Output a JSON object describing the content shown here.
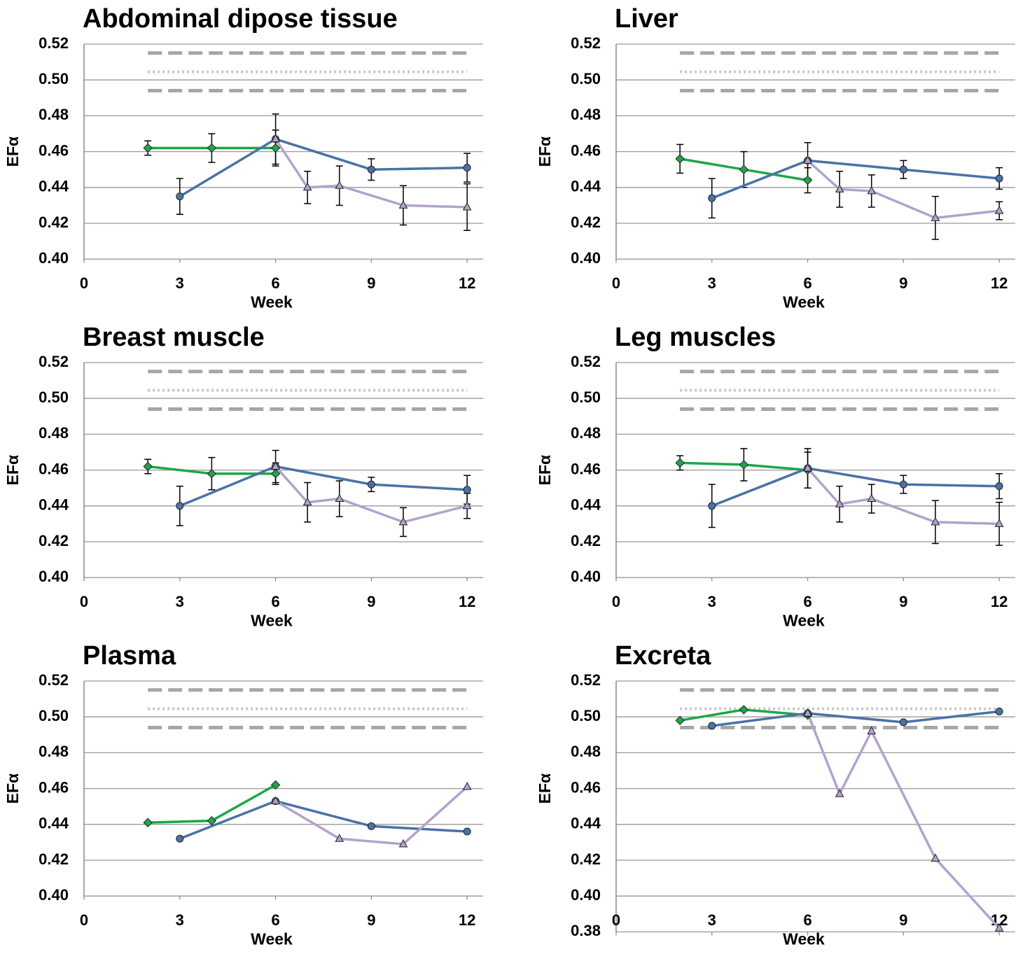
{
  "chart_data": [
    {
      "type": "line",
      "title": "Abdominal dipose tissue",
      "xlabel": "Week",
      "ylabel": "EFα",
      "xlim": [
        0,
        12.5
      ],
      "xticks": [
        0,
        3,
        6,
        9,
        12
      ],
      "ylim": [
        0.4,
        0.52
      ],
      "yticks": [
        {
          "value": 0.4,
          "label": "0.40"
        },
        {
          "value": 0.42,
          "label": "0.42"
        },
        {
          "value": 0.44,
          "label": "0.44"
        },
        {
          "value": 0.46,
          "label": "0.46"
        },
        {
          "value": 0.48,
          "label": "0.48"
        },
        {
          "value": 0.5,
          "label": "0.50"
        },
        {
          "value": 0.52,
          "label": "0.52"
        }
      ],
      "grid": true,
      "reference_x": [
        2,
        12
      ],
      "reference_lines": [
        {
          "y": 0.515,
          "style": "dashed"
        },
        {
          "y": 0.5045,
          "style": "dotted"
        },
        {
          "y": 0.494,
          "style": "dashed"
        }
      ],
      "series": [
        {
          "color": "#1fa648",
          "marker": "diamond",
          "x": [
            2,
            4,
            6
          ],
          "values": [
            0.462,
            0.462,
            0.462
          ],
          "errors": [
            0.004,
            0.008,
            0.01
          ]
        },
        {
          "color": "#4a72a8",
          "marker": "circle",
          "x": [
            3,
            6,
            9,
            12
          ],
          "values": [
            0.435,
            0.467,
            0.45,
            0.451
          ],
          "errors": [
            0.01,
            0.014,
            0.006,
            0.008
          ]
        },
        {
          "color": "#b3a2cc",
          "marker": "triangle",
          "x": [
            6,
            7,
            8,
            10,
            12
          ],
          "values": [
            0.467,
            0.44,
            0.441,
            0.43,
            0.429
          ],
          "errors": [
            null,
            0.009,
            0.011,
            0.011,
            0.013
          ]
        }
      ]
    },
    {
      "type": "line",
      "title": "Liver",
      "xlabel": "Week",
      "ylabel": "EFα",
      "xlim": [
        0,
        12.5
      ],
      "xticks": [
        0,
        3,
        6,
        9,
        12
      ],
      "ylim": [
        0.4,
        0.52
      ],
      "yticks": [
        {
          "value": 0.4,
          "label": "0.40"
        },
        {
          "value": 0.42,
          "label": "0.42"
        },
        {
          "value": 0.44,
          "label": "0.44"
        },
        {
          "value": 0.46,
          "label": "0.46"
        },
        {
          "value": 0.48,
          "label": "0.48"
        },
        {
          "value": 0.5,
          "label": "0.50"
        },
        {
          "value": 0.52,
          "label": "0.52"
        }
      ],
      "grid": true,
      "reference_x": [
        2,
        12
      ],
      "reference_lines": [
        {
          "y": 0.515,
          "style": "dashed"
        },
        {
          "y": 0.5045,
          "style": "dotted"
        },
        {
          "y": 0.494,
          "style": "dashed"
        }
      ],
      "series": [
        {
          "color": "#1fa648",
          "marker": "diamond",
          "x": [
            2,
            4,
            6
          ],
          "values": [
            0.456,
            0.45,
            0.444
          ],
          "errors": [
            0.008,
            0.01,
            0.007
          ]
        },
        {
          "color": "#4a72a8",
          "marker": "circle",
          "x": [
            3,
            6,
            9,
            12
          ],
          "values": [
            0.434,
            0.455,
            0.45,
            0.445
          ],
          "errors": [
            0.011,
            0.01,
            0.005,
            0.006
          ]
        },
        {
          "color": "#b3a2cc",
          "marker": "triangle",
          "x": [
            6,
            7,
            8,
            10,
            12
          ],
          "values": [
            0.455,
            0.439,
            0.438,
            0.423,
            0.427
          ],
          "errors": [
            null,
            0.01,
            0.009,
            0.012,
            0.005
          ]
        }
      ]
    },
    {
      "type": "line",
      "title": "Breast muscle",
      "xlabel": "Week",
      "ylabel": "EFα",
      "xlim": [
        0,
        12.5
      ],
      "xticks": [
        0,
        3,
        6,
        9,
        12
      ],
      "ylim": [
        0.4,
        0.52
      ],
      "yticks": [
        {
          "value": 0.4,
          "label": "0.40"
        },
        {
          "value": 0.42,
          "label": "0.42"
        },
        {
          "value": 0.44,
          "label": "0.44"
        },
        {
          "value": 0.46,
          "label": "0.46"
        },
        {
          "value": 0.48,
          "label": "0.48"
        },
        {
          "value": 0.5,
          "label": "0.50"
        },
        {
          "value": 0.52,
          "label": "0.52"
        }
      ],
      "grid": true,
      "reference_x": [
        2,
        12
      ],
      "reference_lines": [
        {
          "y": 0.515,
          "style": "dashed"
        },
        {
          "y": 0.5045,
          "style": "dotted"
        },
        {
          "y": 0.494,
          "style": "dashed"
        }
      ],
      "series": [
        {
          "color": "#1fa648",
          "marker": "diamond",
          "x": [
            2,
            4,
            6
          ],
          "values": [
            0.462,
            0.458,
            0.458
          ],
          "errors": [
            0.004,
            0.009,
            0.006
          ]
        },
        {
          "color": "#4a72a8",
          "marker": "circle",
          "x": [
            3,
            6,
            9,
            12
          ],
          "values": [
            0.44,
            0.462,
            0.452,
            0.449
          ],
          "errors": [
            0.011,
            0.009,
            0.004,
            0.008
          ]
        },
        {
          "color": "#b3a2cc",
          "marker": "triangle",
          "x": [
            6,
            7,
            8,
            10,
            12
          ],
          "values": [
            0.462,
            0.442,
            0.444,
            0.431,
            0.44
          ],
          "errors": [
            null,
            0.011,
            0.01,
            0.008,
            0.007
          ]
        }
      ]
    },
    {
      "type": "line",
      "title": "Leg muscles",
      "xlabel": "Week",
      "ylabel": "EFα",
      "xlim": [
        0,
        12.5
      ],
      "xticks": [
        0,
        3,
        6,
        9,
        12
      ],
      "ylim": [
        0.4,
        0.52
      ],
      "yticks": [
        {
          "value": 0.4,
          "label": "0.40"
        },
        {
          "value": 0.42,
          "label": "0.42"
        },
        {
          "value": 0.44,
          "label": "0.44"
        },
        {
          "value": 0.46,
          "label": "0.46"
        },
        {
          "value": 0.48,
          "label": "0.48"
        },
        {
          "value": 0.5,
          "label": "0.50"
        },
        {
          "value": 0.52,
          "label": "0.52"
        }
      ],
      "grid": true,
      "reference_x": [
        2,
        12
      ],
      "reference_lines": [
        {
          "y": 0.515,
          "style": "dashed"
        },
        {
          "y": 0.5045,
          "style": "dotted"
        },
        {
          "y": 0.494,
          "style": "dashed"
        }
      ],
      "series": [
        {
          "color": "#1fa648",
          "marker": "diamond",
          "x": [
            2,
            4,
            6
          ],
          "values": [
            0.464,
            0.463,
            0.46
          ],
          "errors": [
            0.004,
            0.009,
            0.01
          ]
        },
        {
          "color": "#4a72a8",
          "marker": "circle",
          "x": [
            3,
            6,
            9,
            12
          ],
          "values": [
            0.44,
            0.461,
            0.452,
            0.451
          ],
          "errors": [
            0.012,
            0.011,
            0.005,
            0.007
          ]
        },
        {
          "color": "#b3a2cc",
          "marker": "triangle",
          "x": [
            6,
            7,
            8,
            10,
            12
          ],
          "values": [
            0.461,
            0.441,
            0.444,
            0.431,
            0.43
          ],
          "errors": [
            null,
            0.01,
            0.008,
            0.012,
            0.012
          ]
        }
      ]
    },
    {
      "type": "line",
      "title": "Plasma",
      "xlabel": "Week",
      "ylabel": "EFα",
      "xlim": [
        0,
        12.5
      ],
      "xticks": [
        0,
        3,
        6,
        9,
        12
      ],
      "ylim": [
        0.4,
        0.52
      ],
      "yticks": [
        {
          "value": 0.4,
          "label": "0.40"
        },
        {
          "value": 0.42,
          "label": "0.42"
        },
        {
          "value": 0.44,
          "label": "0.44"
        },
        {
          "value": 0.46,
          "label": "0.46"
        },
        {
          "value": 0.48,
          "label": "0.48"
        },
        {
          "value": 0.5,
          "label": "0.50"
        },
        {
          "value": 0.52,
          "label": "0.52"
        }
      ],
      "grid": true,
      "reference_x": [
        2,
        12
      ],
      "reference_lines": [
        {
          "y": 0.515,
          "style": "dashed"
        },
        {
          "y": 0.5045,
          "style": "dotted"
        },
        {
          "y": 0.494,
          "style": "dashed"
        }
      ],
      "series": [
        {
          "color": "#1fa648",
          "marker": "diamond",
          "x": [
            2,
            4,
            6
          ],
          "values": [
            0.441,
            0.442,
            0.462
          ]
        },
        {
          "color": "#4a72a8",
          "marker": "circle",
          "x": [
            3,
            6,
            9,
            12
          ],
          "values": [
            0.432,
            0.453,
            0.439,
            0.436
          ]
        },
        {
          "color": "#b3a2cc",
          "marker": "triangle",
          "x": [
            6,
            8,
            10,
            12
          ],
          "values": [
            0.453,
            0.432,
            0.429,
            0.461
          ]
        }
      ]
    },
    {
      "type": "line",
      "title": "Excreta",
      "xlabel": "Week",
      "ylabel": "EFα",
      "xlim": [
        0,
        12.5
      ],
      "xticks": [
        0,
        3,
        6,
        9,
        12
      ],
      "ylim": [
        0.38,
        0.52
      ],
      "yticks": [
        {
          "value": 0.38,
          "label": "0.38"
        },
        {
          "value": 0.4,
          "label": "0.40"
        },
        {
          "value": 0.42,
          "label": "0.42"
        },
        {
          "value": 0.44,
          "label": "0.44"
        },
        {
          "value": 0.46,
          "label": "0.46"
        },
        {
          "value": 0.48,
          "label": "0.48"
        },
        {
          "value": 0.5,
          "label": "0.50"
        },
        {
          "value": 0.52,
          "label": "0.52"
        }
      ],
      "grid": true,
      "reference_x": [
        2,
        12
      ],
      "reference_lines": [
        {
          "y": 0.515,
          "style": "dashed"
        },
        {
          "y": 0.5045,
          "style": "dotted"
        },
        {
          "y": 0.494,
          "style": "dashed"
        }
      ],
      "series": [
        {
          "color": "#1fa648",
          "marker": "diamond",
          "x": [
            2,
            4,
            6
          ],
          "values": [
            0.498,
            0.504,
            0.501
          ]
        },
        {
          "color": "#4a72a8",
          "marker": "circle",
          "x": [
            3,
            6,
            9,
            12
          ],
          "values": [
            0.495,
            0.502,
            0.497,
            0.503
          ]
        },
        {
          "color": "#b3a2cc",
          "marker": "triangle",
          "x": [
            6,
            7,
            8,
            10,
            12
          ],
          "values": [
            0.502,
            0.457,
            0.492,
            0.421,
            0.382
          ]
        }
      ]
    }
  ]
}
